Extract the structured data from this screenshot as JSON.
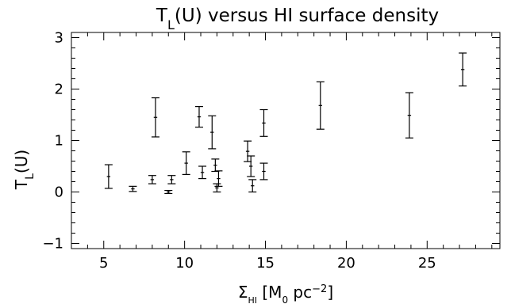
{
  "chart_data": {
    "type": "scatter",
    "title": {
      "base": "T",
      "sub": "L",
      "rest": "(U) versus HI surface density"
    },
    "xlabel": {
      "base": "Σ",
      "sub": "HI",
      "rest": " [M",
      "sub2": "0",
      "rest2": " pc",
      "sup": "−2",
      "end": "]"
    },
    "ylabel": {
      "base": "T",
      "sub": "L",
      "rest": "(U)"
    },
    "xlim": [
      3,
      29.5
    ],
    "ylim": [
      -1.1,
      3.1
    ],
    "xticks": [
      5,
      10,
      15,
      20,
      25
    ],
    "yticks": [
      -1,
      0,
      1,
      2,
      3
    ],
    "xtick_labels": [
      "5",
      "10",
      "15",
      "20",
      "25"
    ],
    "ytick_labels": [
      "−1",
      "0",
      "1",
      "2",
      "3"
    ],
    "x_minor_step": 1,
    "y_minor_step": 0.2,
    "grid": false,
    "points": [
      {
        "x": 5.3,
        "y": 0.3,
        "yerr": 0.23
      },
      {
        "x": 6.8,
        "y": 0.06,
        "yerr": 0.05
      },
      {
        "x": 8.0,
        "y": 0.24,
        "yerr": 0.08
      },
      {
        "x": 8.2,
        "y": 1.45,
        "yerr": 0.38
      },
      {
        "x": 9.0,
        "y": 0.0,
        "yerr": 0.03
      },
      {
        "x": 9.2,
        "y": 0.24,
        "yerr": 0.08
      },
      {
        "x": 10.1,
        "y": 0.56,
        "yerr": 0.22
      },
      {
        "x": 10.9,
        "y": 1.46,
        "yerr": 0.2
      },
      {
        "x": 11.1,
        "y": 0.38,
        "yerr": 0.12
      },
      {
        "x": 11.7,
        "y": 1.16,
        "yerr": 0.32
      },
      {
        "x": 11.9,
        "y": 0.52,
        "yerr": 0.12
      },
      {
        "x": 12.0,
        "y": 0.08,
        "yerr": 0.08
      },
      {
        "x": 12.1,
        "y": 0.26,
        "yerr": 0.15
      },
      {
        "x": 13.9,
        "y": 0.79,
        "yerr": 0.2
      },
      {
        "x": 14.1,
        "y": 0.5,
        "yerr": 0.2
      },
      {
        "x": 14.2,
        "y": 0.12,
        "yerr": 0.12
      },
      {
        "x": 14.9,
        "y": 1.34,
        "yerr": 0.26
      },
      {
        "x": 14.9,
        "y": 0.4,
        "yerr": 0.16
      },
      {
        "x": 18.4,
        "y": 1.68,
        "yerr": 0.46
      },
      {
        "x": 23.9,
        "y": 1.49,
        "yerr": 0.44
      },
      {
        "x": 27.2,
        "y": 2.38,
        "yerr": 0.32
      }
    ]
  }
}
